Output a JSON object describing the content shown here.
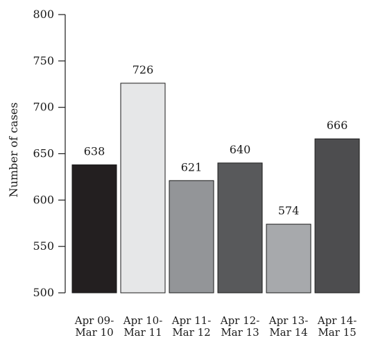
{
  "chart_data": {
    "type": "bar",
    "title": "",
    "xlabel": "",
    "ylabel": "Number of cases",
    "ylim": [
      500,
      800
    ],
    "yticks": [
      500,
      550,
      600,
      650,
      700,
      750,
      800
    ],
    "grid": false,
    "legend": "none",
    "categories": [
      [
        "Apr 09-",
        "Mar 10"
      ],
      [
        "Apr 10-",
        "Mar 11"
      ],
      [
        "Apr 11-",
        "Mar 12"
      ],
      [
        "Apr 12-",
        "Mar 13"
      ],
      [
        "Apr 13-",
        "Mar 14"
      ],
      [
        "Apr 14-",
        "Mar 15"
      ]
    ],
    "values": [
      638,
      726,
      621,
      640,
      574,
      666
    ],
    "bar_colors": [
      "#231f20",
      "#e6e7e8",
      "#939598",
      "#58595b",
      "#a7a9ac",
      "#4d4d4f"
    ]
  }
}
